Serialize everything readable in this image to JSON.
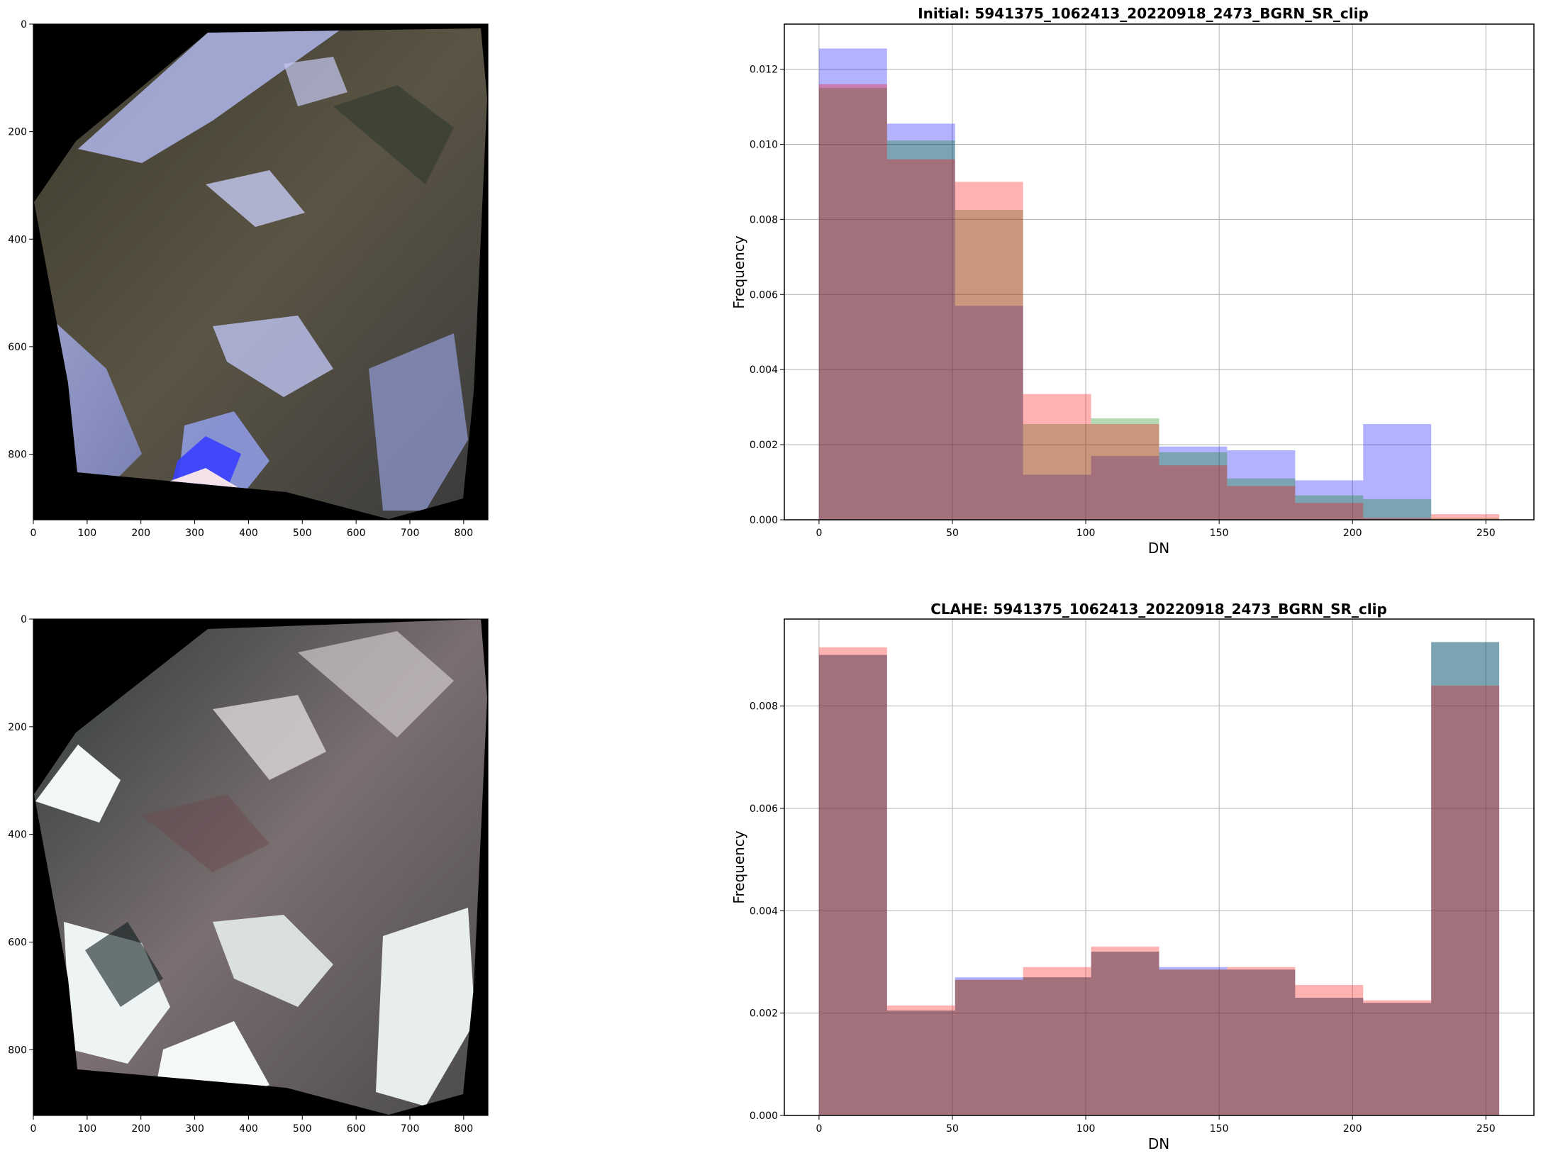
{
  "images": [
    {
      "kind": "image-panel",
      "description_key": "initial-rgb",
      "xticks": [
        "0",
        "100",
        "200",
        "300",
        "400",
        "500",
        "600",
        "700",
        "800"
      ],
      "yticks": [
        "0",
        "200",
        "400",
        "600",
        "800"
      ]
    },
    {
      "kind": "image-panel",
      "description_key": "clahe-rgb",
      "xticks": [
        "0",
        "100",
        "200",
        "300",
        "400",
        "500",
        "600",
        "700",
        "800"
      ],
      "yticks": [
        "0",
        "200",
        "400",
        "600",
        "800"
      ]
    }
  ],
  "chart_data": [
    {
      "type": "bar",
      "title": "Initial: 5941375_1062413_20220918_2473_BGRN_SR_clip",
      "xlabel": "DN",
      "ylabel": "Frequency",
      "xlim": [
        -13,
        268
      ],
      "ylim": [
        0,
        0.0132
      ],
      "xticks": [
        0,
        50,
        100,
        150,
        200,
        250
      ],
      "yticks": [
        0.0,
        0.002,
        0.004,
        0.006,
        0.008,
        0.01,
        0.012
      ],
      "ytick_format": 3,
      "bin_edges": [
        0,
        25.5,
        51,
        76.5,
        102,
        127.5,
        153,
        178.5,
        204,
        229.5,
        255
      ],
      "series": [
        {
          "color": "#0000ff",
          "values": [
            0.01255,
            0.01055,
            0.0057,
            0.0012,
            0.0017,
            0.00195,
            0.00185,
            0.00105,
            0.00255,
            0.0
          ]
        },
        {
          "color": "#008000",
          "values": [
            0.0115,
            0.0101,
            0.00825,
            0.00255,
            0.0027,
            0.0018,
            0.0011,
            0.00065,
            0.00055,
            5e-05
          ]
        },
        {
          "color": "#ff0000",
          "values": [
            0.0116,
            0.0096,
            0.009,
            0.00335,
            0.00255,
            0.00145,
            0.0009,
            0.00045,
            5e-05,
            0.00015
          ]
        }
      ],
      "grid": true
    },
    {
      "type": "bar",
      "title": "CLAHE: 5941375_1062413_20220918_2473_BGRN_SR_clip",
      "xlabel": "DN",
      "ylabel": "Frequency",
      "xlim": [
        -13,
        268
      ],
      "ylim": [
        0,
        0.0097
      ],
      "xticks": [
        0,
        50,
        100,
        150,
        200,
        250
      ],
      "yticks": [
        0.0,
        0.002,
        0.004,
        0.006,
        0.008
      ],
      "ytick_format": 3,
      "bin_edges": [
        0,
        25.5,
        51,
        76.5,
        102,
        127.5,
        153,
        178.5,
        204,
        229.5,
        255
      ],
      "series": [
        {
          "color": "#0000ff",
          "values": [
            0.009,
            0.00205,
            0.0027,
            0.0027,
            0.0032,
            0.0029,
            0.00285,
            0.0023,
            0.0022,
            0.00925
          ]
        },
        {
          "color": "#008000",
          "values": [
            0.009,
            0.00205,
            0.00265,
            0.0027,
            0.0032,
            0.00285,
            0.00285,
            0.0023,
            0.0022,
            0.00925
          ]
        },
        {
          "color": "#ff0000",
          "values": [
            0.00915,
            0.00215,
            0.00265,
            0.0029,
            0.0033,
            0.00285,
            0.0029,
            0.00255,
            0.00225,
            0.0084
          ]
        }
      ],
      "grid": true
    }
  ]
}
